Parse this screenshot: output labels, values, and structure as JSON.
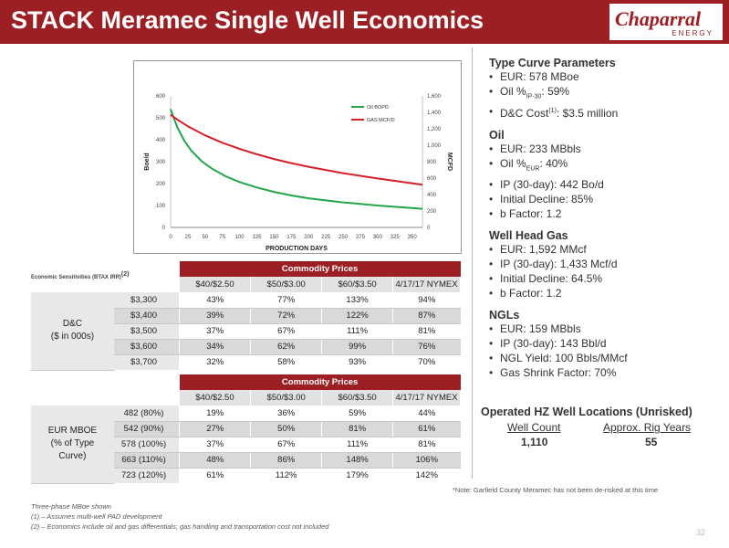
{
  "header": {
    "title": "STACK Meramec Single Well Economics"
  },
  "logo": {
    "name": "Chaparral",
    "sub": "ENERGY"
  },
  "chart_data": {
    "type": "line",
    "xlabel": "PRODUCTION DAYS",
    "ylabel": "Boe/d",
    "y2label": "MCFD",
    "x_ticks": [
      0,
      25,
      50,
      75,
      100,
      125,
      150,
      175,
      200,
      225,
      250,
      275,
      300,
      325,
      350
    ],
    "xlim": [
      0,
      365
    ],
    "ylim": [
      0,
      600
    ],
    "y_ticks": [
      0,
      100,
      200,
      300,
      400,
      500,
      600
    ],
    "y2lim": [
      0,
      1600
    ],
    "y2_ticks": [
      0,
      200,
      400,
      600,
      800,
      1000,
      1200,
      1400,
      1600
    ],
    "y2_tick_labels": [
      "0",
      "200",
      "400",
      "600",
      "800",
      "1,000",
      "1,200",
      "1,400",
      "1,600"
    ],
    "legend_position": "top-right",
    "series": [
      {
        "name": "Oil BOPD",
        "axis": "left",
        "color": "#22a64a",
        "x": [
          0,
          5,
          10,
          20,
          30,
          45,
          60,
          80,
          100,
          125,
          150,
          175,
          200,
          250,
          300,
          365
        ],
        "values": [
          540,
          495,
          455,
          395,
          350,
          302,
          268,
          233,
          207,
          182,
          162,
          146,
          133,
          114,
          100,
          85
        ]
      },
      {
        "name": "GAS MCF/D",
        "axis": "right",
        "color": "#d42027",
        "x": [
          0,
          10,
          25,
          50,
          75,
          100,
          125,
          150,
          175,
          200,
          250,
          300,
          365
        ],
        "values": [
          1370,
          1310,
          1230,
          1120,
          1030,
          955,
          890,
          832,
          782,
          738,
          660,
          595,
          520
        ]
      }
    ]
  },
  "sens": {
    "label": "Economic Sensitivities (BTAX IRR)",
    "label_sup": "(2)",
    "table1": {
      "group_header": "Commodity Prices",
      "columns": [
        "$40/$2.50",
        "$50/$3.00",
        "$60/$3.50",
        "4/17/17 NYMEX"
      ],
      "row_group": [
        "D&C",
        "($ in 000s)"
      ],
      "rows": [
        {
          "label": "$3,300",
          "values": [
            "43%",
            "77%",
            "133%",
            "94%"
          ]
        },
        {
          "label": "$3,400",
          "values": [
            "39%",
            "72%",
            "122%",
            "87%"
          ]
        },
        {
          "label": "$3,500",
          "values": [
            "37%",
            "67%",
            "111%",
            "81%"
          ]
        },
        {
          "label": "$3,600",
          "values": [
            "34%",
            "62%",
            "99%",
            "76%"
          ]
        },
        {
          "label": "$3,700",
          "values": [
            "32%",
            "58%",
            "93%",
            "70%"
          ]
        }
      ]
    },
    "table2": {
      "group_header": "Commodity Prices",
      "columns": [
        "$40/$2.50",
        "$50/$3.00",
        "$60/$3.50",
        "4/17/17 NYMEX"
      ],
      "row_group": [
        "EUR MBOE",
        "(% of Type",
        "Curve)"
      ],
      "rows": [
        {
          "label": "482 (80%)",
          "values": [
            "19%",
            "36%",
            "59%",
            "44%"
          ]
        },
        {
          "label": "542 (90%)",
          "values": [
            "27%",
            "50%",
            "81%",
            "61%"
          ]
        },
        {
          "label": "578 (100%)",
          "values": [
            "37%",
            "67%",
            "111%",
            "81%"
          ]
        },
        {
          "label": "663 (110%)",
          "values": [
            "48%",
            "86%",
            "148%",
            "106%"
          ]
        },
        {
          "label": "723 (120%)",
          "values": [
            "61%",
            "112%",
            "179%",
            "142%"
          ]
        }
      ]
    }
  },
  "type_curve": {
    "title": "Type Curve Parameters",
    "eur": "EUR: 578 MBoe",
    "oil_pct_a": "Oil %",
    "oil_pct_sub": "IP-30",
    "oil_pct_b": ": 59%",
    "dc_a": "D&C Cost",
    "dc_sup": "(1)",
    "dc_b": ": $3.5 million"
  },
  "oil": {
    "title": "Oil",
    "eur": "EUR: 233 MBbls",
    "pct_a": "Oil %",
    "pct_sub": "EUR",
    "pct_b": ": 40%",
    "ip": "IP (30-day): 442 Bo/d",
    "decline": "Initial Decline: 85%",
    "b": "b Factor: 1.2"
  },
  "gas": {
    "title": "Well Head Gas",
    "items": [
      "EUR: 1,592 MMcf",
      "IP (30-day): 1,433 Mcf/d",
      "Initial Decline: 64.5%",
      "b Factor: 1.2"
    ]
  },
  "ngl": {
    "title": "NGLs",
    "items": [
      "EUR: 159 MBbls",
      "IP (30-day): 143 Bbl/d",
      "NGL Yield: 100 Bbls/MMcf",
      "Gas Shrink Factor: 70%"
    ]
  },
  "locations": {
    "title": "Operated HZ Well Locations (Unrisked)",
    "col1": "Well Count",
    "col2": "Approx. Rig Years",
    "val1": "1,110",
    "val2": "55"
  },
  "note": "*Note: Garfield County Meramec has not been de-risked at this time",
  "footnotes": [
    "Three-phase MBoe shown",
    "(1) – Assumes multi-well PAD development",
    "(2) – Economics include oil and gas differentials; gas handling and transportation cost not included"
  ],
  "page_number": "32"
}
